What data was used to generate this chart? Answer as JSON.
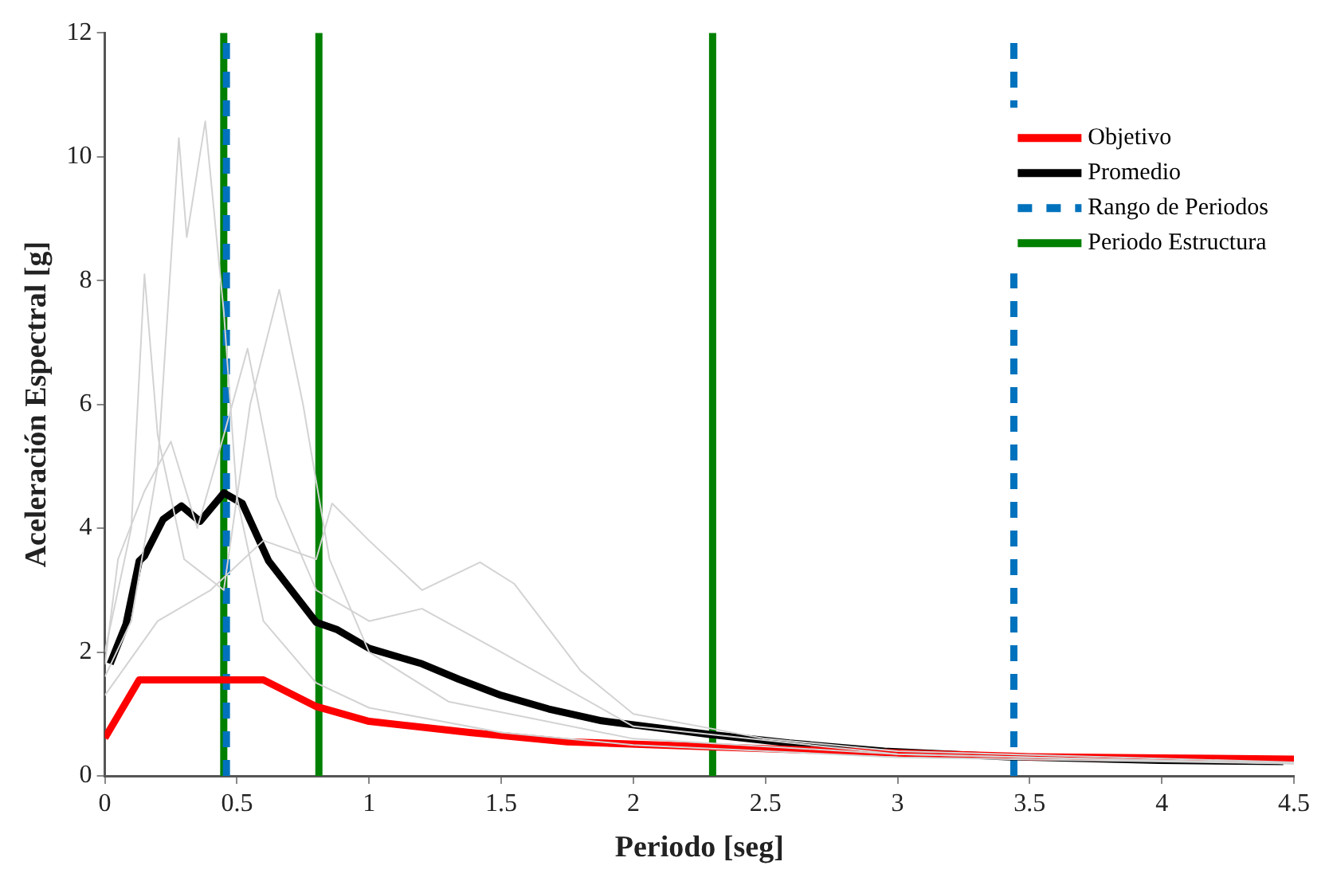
{
  "chart_data": {
    "type": "line",
    "xlabel": "Periodo [seg]",
    "ylabel": "Aceleración Espectral [g]",
    "xlim": [
      0,
      4.5
    ],
    "ylim": [
      0,
      12
    ],
    "xticks": [
      0,
      0.5,
      1,
      1.5,
      2,
      2.5,
      3,
      3.5,
      4,
      4.5
    ],
    "yticks": [
      0,
      2,
      4,
      6,
      8,
      10,
      12
    ],
    "grid": false,
    "legend": "top right",
    "marker": "none",
    "series": [
      {
        "color": "#d3d3d3",
        "x": [
          0,
          0.1,
          0.2,
          0.28,
          0.31,
          0.38,
          0.45,
          0.5,
          0.6,
          0.8,
          1.0,
          1.5,
          2,
          3,
          4.5
        ],
        "values": [
          1.6,
          2.5,
          5,
          10.3,
          8.7,
          10.57,
          7.5,
          4.5,
          2.5,
          1.5,
          1.1,
          0.7,
          0.5,
          0.3,
          0.2
        ]
      },
      {
        "color": "#d3d3d3",
        "x": [
          0,
          0.1,
          0.15,
          0.2,
          0.3,
          0.45,
          0.55,
          0.66,
          0.75,
          0.85,
          1.0,
          1.3,
          2,
          3,
          4.5
        ],
        "values": [
          2,
          4,
          8.1,
          5.5,
          3.5,
          3,
          6,
          7.85,
          6,
          3.5,
          2,
          1.2,
          0.6,
          0.35,
          0.2
        ]
      },
      {
        "color": "#d3d3d3",
        "x": [
          0,
          0.2,
          0.4,
          0.6,
          0.8,
          0.86,
          1.0,
          1.2,
          1.42,
          1.55,
          1.8,
          2.0,
          2.5,
          3,
          4.5
        ],
        "values": [
          1.3,
          2.5,
          3,
          3.8,
          3.5,
          4.4,
          3.8,
          3.0,
          3.45,
          3.1,
          1.7,
          1.0,
          0.6,
          0.4,
          0.22
        ]
      },
      {
        "color": "#d3d3d3",
        "x": [
          0,
          0.05,
          0.15,
          0.25,
          0.35,
          0.45,
          0.54,
          0.65,
          0.8,
          1.0,
          1.2,
          1.5,
          2,
          3,
          4.5
        ],
        "values": [
          1.8,
          3.5,
          4.6,
          5.4,
          4,
          5.5,
          6.9,
          4.5,
          3,
          2.5,
          2.7,
          2.0,
          0.8,
          0.35,
          0.2
        ]
      },
      {
        "name": "Objetivo",
        "color": "#ff0000",
        "x": [
          0,
          0.13,
          0.6,
          0.8,
          1.0,
          1.38,
          1.75,
          2.29,
          3.0,
          3.5,
          4.0,
          4.5
        ],
        "values": [
          0.61,
          1.55,
          1.55,
          1.12,
          0.88,
          0.7,
          0.55,
          0.47,
          0.37,
          0.31,
          0.29,
          0.27
        ]
      },
      {
        "name": "Promedio",
        "color": "#000000",
        "x": [
          0.02,
          0.08,
          0.13,
          0.15,
          0.22,
          0.29,
          0.36,
          0.45,
          0.52,
          0.62,
          0.8,
          0.88,
          1.0,
          1.2,
          1.34,
          1.5,
          1.68,
          1.88,
          2.29,
          2.59,
          2.95,
          3.41,
          3.99,
          4.46
        ],
        "values": [
          1.81,
          2.45,
          3.47,
          3.55,
          4.14,
          4.36,
          4.11,
          4.57,
          4.4,
          3.47,
          2.48,
          2.36,
          2.06,
          1.81,
          1.56,
          1.3,
          1.08,
          0.89,
          0.67,
          0.53,
          0.4,
          0.31,
          0.25,
          0.23
        ]
      },
      {
        "name": "Rango de Periodos",
        "color": "#0072bd",
        "line_style": "dashed",
        "x": [
          0.46,
          0.46,
          null,
          3.44,
          3.44
        ],
        "values": [
          0,
          12,
          null,
          0,
          12
        ]
      },
      {
        "name": "Periodo Estructura",
        "color": "#008000",
        "x": [
          0.45,
          0.45,
          null,
          0.81,
          0.81,
          null,
          2.3,
          2.3
        ],
        "values": [
          0,
          12,
          null,
          0,
          12,
          null,
          0,
          12
        ]
      }
    ]
  }
}
